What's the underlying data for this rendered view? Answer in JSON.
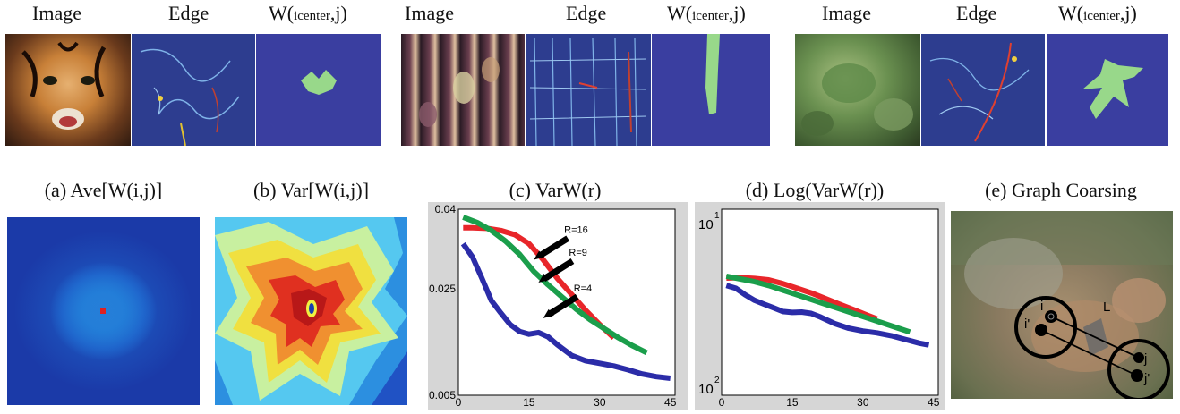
{
  "top_row": {
    "groups": [
      {
        "image_label": "Image",
        "edge_label": "Edge",
        "w_label_main": "W(",
        "w_label_sub": "icenter",
        "w_label_tail": ",j)"
      },
      {
        "image_label": "Image",
        "edge_label": "Edge",
        "w_label_main": "W(",
        "w_label_sub": "icenter",
        "w_label_tail": ",j)"
      },
      {
        "image_label": "Image",
        "edge_label": "Edge",
        "w_label_main": "W(",
        "w_label_sub": "icenter",
        "w_label_tail": ",j)"
      }
    ]
  },
  "bottom_row": {
    "captions": {
      "a": "(a) Ave[W(i,j)]",
      "b": "(b) Var[W(i,j)]",
      "c": "(c) VarW(r)",
      "d": "(d) Log(VarW(r))",
      "e": "(e) Graph Coarsing"
    },
    "graph_labels": {
      "i": "i",
      "i_prime": "i'",
      "j": "j",
      "j_prime": "j'",
      "L": "L"
    }
  },
  "chart_data": [
    {
      "type": "line",
      "title": "(c) VarW(r)",
      "xlabel": "",
      "ylabel": "",
      "x_ticks": [
        "0",
        "15",
        "30",
        "45"
      ],
      "y_ticks": [
        "0.005",
        "0.025",
        "0.04"
      ],
      "xlim": [
        0,
        46
      ],
      "ylim": [
        0.005,
        0.04
      ],
      "grid": false,
      "series": [
        {
          "name": "R=16",
          "color": "#e8262a",
          "x": [
            1,
            3,
            6,
            9,
            12,
            15,
            18,
            21,
            24,
            27,
            30,
            33
          ],
          "y": [
            0.0365,
            0.0365,
            0.0364,
            0.036,
            0.0352,
            0.0335,
            0.0305,
            0.027,
            0.024,
            0.021,
            0.0183,
            0.0158
          ]
        },
        {
          "name": "R=9",
          "color": "#1b9e4b",
          "x": [
            1,
            4,
            7,
            10,
            13,
            16,
            19,
            22,
            25,
            28,
            31,
            34,
            37,
            40
          ],
          "y": [
            0.0385,
            0.0375,
            0.036,
            0.034,
            0.0315,
            0.0283,
            0.0258,
            0.0235,
            0.0212,
            0.0192,
            0.0175,
            0.0158,
            0.0143,
            0.013
          ]
        },
        {
          "name": "R=4",
          "color": "#2b2ca8",
          "x": [
            1,
            3,
            5,
            7,
            9,
            11,
            13,
            15,
            17,
            19,
            21,
            24,
            27,
            30,
            33,
            36,
            39,
            42,
            45
          ],
          "y": [
            0.0335,
            0.031,
            0.027,
            0.0228,
            0.0205,
            0.0183,
            0.017,
            0.0165,
            0.0168,
            0.016,
            0.0145,
            0.0125,
            0.0115,
            0.011,
            0.0105,
            0.0098,
            0.009,
            0.0085,
            0.0082
          ]
        }
      ],
      "annotations": [
        "R=16",
        "R=9",
        "R=4"
      ]
    },
    {
      "type": "line",
      "title": "(d) Log(VarW(r))",
      "xlabel": "",
      "ylabel": "",
      "x_ticks": [
        "0",
        "15",
        "30",
        "45"
      ],
      "y_tick_base": "10",
      "y_tick_top_exp": "1",
      "y_tick_bottom_exp": "2",
      "xlim": [
        0,
        46
      ],
      "grid": false,
      "series": [
        {
          "color": "#e8262a",
          "x": [
            1,
            4,
            7,
            10,
            13,
            16,
            19,
            22,
            25,
            28,
            31,
            33
          ],
          "y": [
            0.63,
            0.632,
            0.628,
            0.62,
            0.6,
            0.575,
            0.55,
            0.52,
            0.49,
            0.46,
            0.43,
            0.41
          ]
        },
        {
          "color": "#1b9e4b",
          "x": [
            1,
            4,
            7,
            10,
            13,
            16,
            19,
            22,
            25,
            28,
            31,
            34,
            37,
            40
          ],
          "y": [
            0.64,
            0.625,
            0.61,
            0.59,
            0.565,
            0.54,
            0.515,
            0.49,
            0.465,
            0.44,
            0.415,
            0.39,
            0.365,
            0.34
          ]
        },
        {
          "color": "#2b2ca8",
          "x": [
            1,
            3,
            5,
            7,
            9,
            11,
            13,
            15,
            17,
            19,
            21,
            24,
            27,
            30,
            33,
            36,
            39,
            42,
            44
          ],
          "y": [
            0.59,
            0.575,
            0.54,
            0.51,
            0.49,
            0.47,
            0.45,
            0.445,
            0.447,
            0.44,
            0.42,
            0.385,
            0.36,
            0.345,
            0.335,
            0.32,
            0.3,
            0.28,
            0.27
          ]
        }
      ]
    }
  ]
}
